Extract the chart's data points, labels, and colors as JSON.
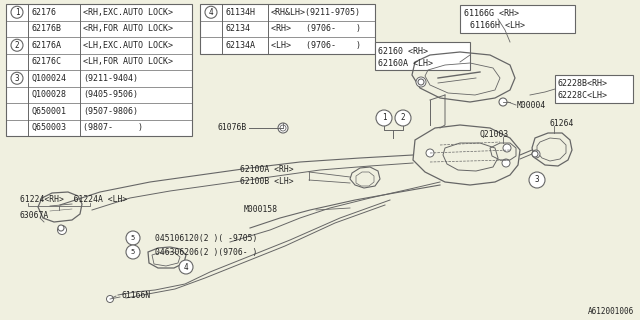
{
  "bg_color": "#f0f0e0",
  "line_color": "#666666",
  "text_color": "#222222",
  "part_code": "A612001006",
  "table1_rows": [
    [
      "1",
      "62176",
      "<RH,EXC.AUTO LOCK>"
    ],
    [
      "1",
      "62176B",
      "<RH,FOR AUTO LOCK>"
    ],
    [
      "2",
      "62176A",
      "<LH,EXC.AUTO LOCK>"
    ],
    [
      "2",
      "62176C",
      "<LH,FOR AUTO LOCK>"
    ],
    [
      "3",
      "Q100024",
      "(9211-9404)"
    ],
    [
      "3",
      "Q100028",
      "(9405-9506)"
    ],
    [
      "3",
      "Q650001",
      "(9507-9806)"
    ],
    [
      "3",
      "Q650003",
      "(9807-     )"
    ]
  ],
  "table2_rows": [
    [
      "4",
      "61134H",
      "<RH&LH>(9211-9705)"
    ],
    [
      "4",
      "62134",
      "<RH>   (9706-    )"
    ],
    [
      "4",
      "62134A",
      "<LH>   (9706-    )"
    ]
  ]
}
